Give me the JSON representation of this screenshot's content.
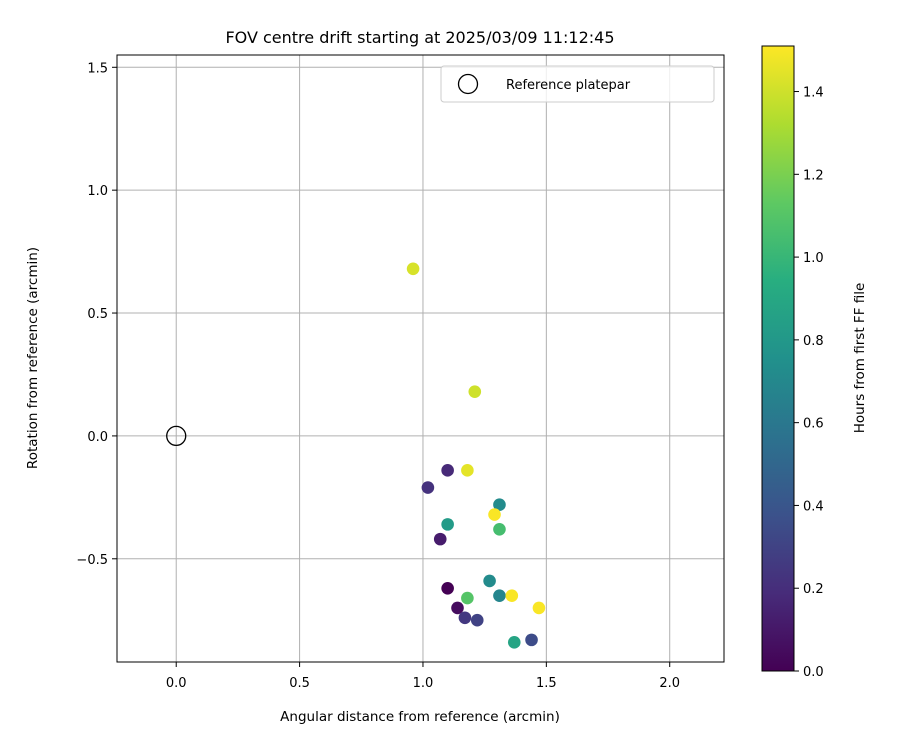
{
  "chart_data": {
    "type": "scatter",
    "title": "FOV centre drift starting at 2025/03/09 11:12:45",
    "xlabel": "Angular distance from reference (arcmin)",
    "ylabel": "Rotation from reference (arcmin)",
    "xlim": [
      -0.24,
      2.22
    ],
    "ylim": [
      -0.92,
      1.55
    ],
    "x_ticks": [
      0.0,
      0.5,
      1.0,
      1.5,
      2.0
    ],
    "x_tick_labels": [
      "0.0",
      "0.5",
      "1.0",
      "1.5",
      "2.0"
    ],
    "y_ticks": [
      -0.5,
      0.0,
      0.5,
      1.0,
      1.5
    ],
    "y_tick_labels": [
      "−0.5",
      "0.0",
      "0.5",
      "1.0",
      "1.5"
    ],
    "grid": true,
    "legend": {
      "placement": "top-right",
      "entries": [
        "Reference platepar"
      ]
    },
    "reference_point": {
      "x": 0.0,
      "y": 0.0,
      "marker": "open-circle"
    },
    "colorbar": {
      "label": "Hours from first FF file",
      "range": [
        0.0,
        1.51
      ],
      "colormap": "viridis",
      "ticks": [
        0.0,
        0.2,
        0.4,
        0.6,
        0.8,
        1.0,
        1.2,
        1.4
      ],
      "tick_labels": [
        "0.0",
        "0.2",
        "0.4",
        "0.6",
        "0.8",
        "1.0",
        "1.2",
        "1.4"
      ]
    },
    "points": [
      {
        "x": 1.1,
        "y": -0.62,
        "c": 0.0
      },
      {
        "x": 1.14,
        "y": -0.7,
        "c": 0.05
      },
      {
        "x": 1.07,
        "y": -0.42,
        "c": 0.12
      },
      {
        "x": 1.1,
        "y": -0.14,
        "c": 0.18
      },
      {
        "x": 1.02,
        "y": -0.21,
        "c": 0.22
      },
      {
        "x": 1.17,
        "y": -0.74,
        "c": 0.25
      },
      {
        "x": 1.22,
        "y": -0.75,
        "c": 0.3
      },
      {
        "x": 1.44,
        "y": -0.83,
        "c": 0.35
      },
      {
        "x": 1.31,
        "y": -0.65,
        "c": 0.68
      },
      {
        "x": 1.27,
        "y": -0.59,
        "c": 0.72
      },
      {
        "x": 1.31,
        "y": -0.28,
        "c": 0.72
      },
      {
        "x": 1.1,
        "y": -0.36,
        "c": 0.82
      },
      {
        "x": 1.37,
        "y": -0.84,
        "c": 0.88
      },
      {
        "x": 1.31,
        "y": -0.38,
        "c": 1.05
      },
      {
        "x": 1.18,
        "y": -0.66,
        "c": 1.1
      },
      {
        "x": 0.96,
        "y": 0.68,
        "c": 1.42
      },
      {
        "x": 1.21,
        "y": 0.18,
        "c": 1.4
      },
      {
        "x": 1.18,
        "y": -0.14,
        "c": 1.45
      },
      {
        "x": 1.29,
        "y": -0.32,
        "c": 1.5
      },
      {
        "x": 1.36,
        "y": -0.65,
        "c": 1.5
      },
      {
        "x": 1.47,
        "y": -0.7,
        "c": 1.5
      }
    ]
  }
}
